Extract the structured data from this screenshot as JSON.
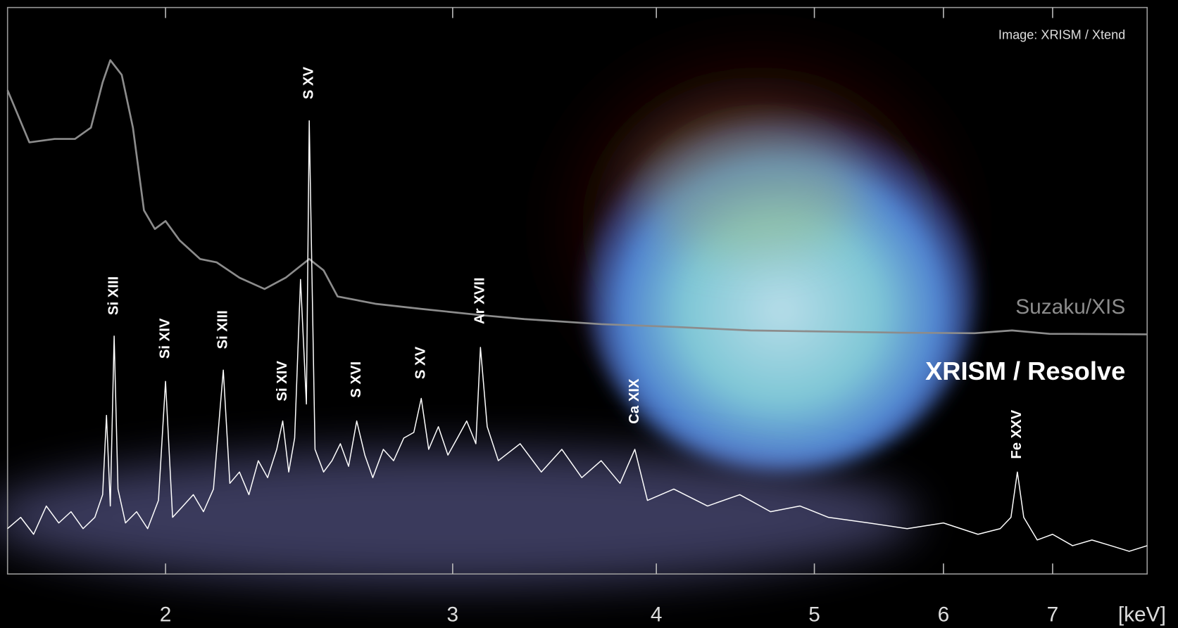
{
  "chart_data": {
    "type": "line",
    "x_unit_label": "[keV]",
    "credit": "Image: XRISM / Xtend",
    "log_x": true,
    "xlim": [
      1.6,
      8.0
    ],
    "xticks": [
      2,
      3,
      4,
      5,
      6,
      7
    ],
    "ylim": [
      0,
      100
    ],
    "series": [
      {
        "name": "Suzaku/XIS",
        "color": "#8c8c8c",
        "x": [
          1.6,
          1.65,
          1.71,
          1.76,
          1.8,
          1.83,
          1.85,
          1.88,
          1.91,
          1.94,
          1.97,
          2.0,
          2.04,
          2.1,
          2.15,
          2.22,
          2.3,
          2.37,
          2.45,
          2.5,
          2.55,
          2.69,
          2.87,
          3.12,
          3.32,
          3.7,
          4.11,
          4.57,
          5.08,
          5.64,
          6.27,
          6.61,
          6.97,
          8.0
        ],
        "values": [
          85.4,
          76.2,
          76.8,
          76.8,
          78.8,
          86.8,
          90.7,
          88.1,
          78.8,
          64.2,
          60.9,
          62.3,
          58.9,
          55.6,
          55.0,
          52.3,
          50.3,
          52.3,
          55.6,
          53.6,
          49.0,
          47.7,
          46.8,
          45.7,
          45.0,
          44.1,
          43.6,
          43.0,
          42.8,
          42.6,
          42.5,
          43.0,
          42.4,
          42.3
        ]
      },
      {
        "name": "XRISM / Resolve",
        "color": "#ffffff",
        "x": [
          1.6,
          1.63,
          1.66,
          1.69,
          1.72,
          1.75,
          1.78,
          1.81,
          1.83,
          1.84,
          1.85,
          1.86,
          1.87,
          1.89,
          1.92,
          1.95,
          1.98,
          2.0,
          2.02,
          2.05,
          2.08,
          2.11,
          2.14,
          2.17,
          2.19,
          2.22,
          2.25,
          2.28,
          2.31,
          2.34,
          2.36,
          2.38,
          2.4,
          2.42,
          2.44,
          2.45,
          2.47,
          2.5,
          2.53,
          2.56,
          2.59,
          2.62,
          2.65,
          2.68,
          2.72,
          2.76,
          2.8,
          2.84,
          2.87,
          2.9,
          2.94,
          2.98,
          3.02,
          3.06,
          3.1,
          3.12,
          3.15,
          3.2,
          3.3,
          3.4,
          3.5,
          3.6,
          3.7,
          3.8,
          3.88,
          3.95,
          4.1,
          4.3,
          4.5,
          4.7,
          4.9,
          5.1,
          5.4,
          5.7,
          6.0,
          6.3,
          6.5,
          6.6,
          6.66,
          6.72,
          6.85,
          7.0,
          7.2,
          7.4,
          7.6,
          7.8,
          8.0
        ],
        "values": [
          8,
          10,
          7,
          12,
          9,
          11,
          8,
          10,
          14,
          28,
          12,
          42,
          15,
          9,
          11,
          8,
          13,
          34,
          10,
          12,
          14,
          11,
          15,
          36,
          16,
          18,
          14,
          20,
          17,
          22,
          27,
          18,
          24,
          52,
          30,
          80,
          22,
          18,
          20,
          23,
          19,
          27,
          21,
          17,
          22,
          20,
          24,
          25,
          31,
          22,
          26,
          21,
          24,
          27,
          23,
          40,
          26,
          20,
          23,
          18,
          22,
          17,
          20,
          16,
          22,
          13,
          15,
          12,
          14,
          11,
          12,
          10,
          9,
          8,
          9,
          7,
          8,
          10,
          18,
          10,
          6,
          7,
          5,
          6,
          5,
          4,
          5
        ]
      }
    ],
    "annotations": [
      {
        "text": "Si XIII",
        "x": 1.86,
        "y": 45.7
      },
      {
        "text": "Si XIV",
        "x": 2.0,
        "y": 38.0
      },
      {
        "text": "Si XIII",
        "x": 2.17,
        "y": 39.7
      },
      {
        "text": "Si XIV",
        "x": 2.36,
        "y": 30.5
      },
      {
        "text": "S XV",
        "x": 2.45,
        "y": 83.8
      },
      {
        "text": "S XVI",
        "x": 2.62,
        "y": 31.1
      },
      {
        "text": "S XV",
        "x": 2.87,
        "y": 34.4
      },
      {
        "text": "Ar XVII",
        "x": 3.12,
        "y": 44.1
      },
      {
        "text": "Ca XIX",
        "x": 3.88,
        "y": 26.5
      },
      {
        "text": "Fe XXV",
        "x": 6.66,
        "y": 20.3
      }
    ]
  }
}
